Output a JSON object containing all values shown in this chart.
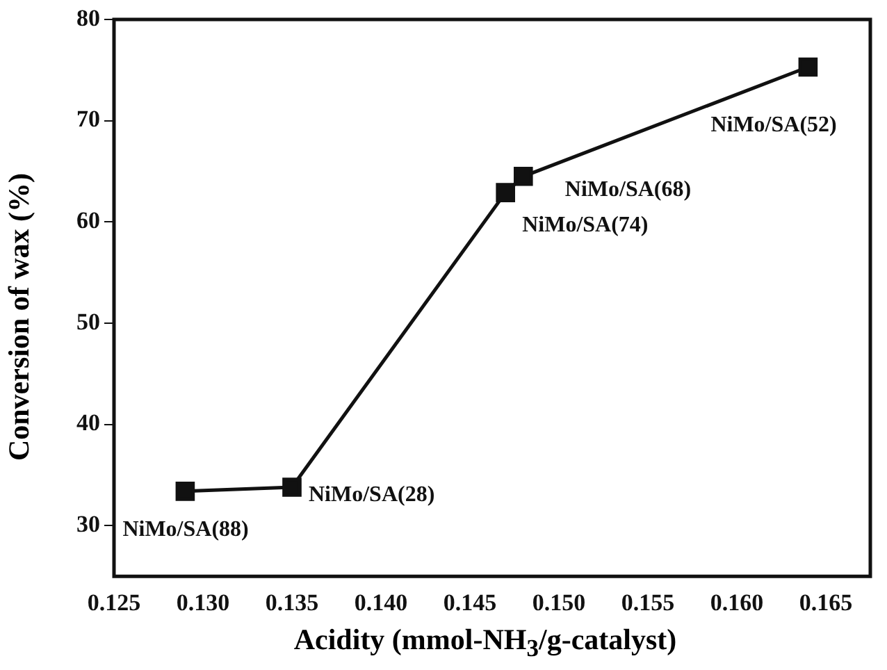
{
  "chart_data": {
    "type": "line",
    "xlabel": "Acidity (mmol-NH$_{3}$/g-catalyst)",
    "ylabel": "Conversion of wax (%)",
    "x": [
      0.129,
      0.135,
      0.147,
      0.148,
      0.164
    ],
    "series": [
      {
        "color": "#111111",
        "values": [
          33.4,
          33.8,
          62.9,
          64.5,
          75.3
        ]
      }
    ],
    "marker": "square",
    "line_style": "solid",
    "grid": false,
    "legend": false,
    "xlim": [
      0.125,
      0.1675
    ],
    "xticks": [
      {
        "value": 0.125,
        "label": "0.125"
      },
      {
        "value": 0.13,
        "label": "0.130"
      },
      {
        "value": 0.135,
        "label": "0.135"
      },
      {
        "value": 0.14,
        "label": "0.140"
      },
      {
        "value": 0.145,
        "label": "0.145"
      },
      {
        "value": 0.15,
        "label": "0.150"
      },
      {
        "value": 0.155,
        "label": "0.155"
      },
      {
        "value": 0.16,
        "label": "0.160"
      },
      {
        "value": 0.165,
        "label": "0.165"
      }
    ],
    "ylim": [
      25,
      80
    ],
    "yticks": [
      30,
      40,
      50,
      60,
      70,
      80
    ],
    "annotations": [
      {
        "text": "NiMo/SA(88)",
        "x": 0.129,
        "y": 33.4
      },
      {
        "text": "NiMo/SA(28)",
        "x": 0.135,
        "y": 33.8
      },
      {
        "text": "NiMo/SA(74)",
        "x": 0.147,
        "y": 62.9
      },
      {
        "text": "NiMo/SA(68)",
        "x": 0.148,
        "y": 64.5
      },
      {
        "text": "NiMo/SA(52)",
        "x": 0.164,
        "y": 75.3
      }
    ]
  }
}
